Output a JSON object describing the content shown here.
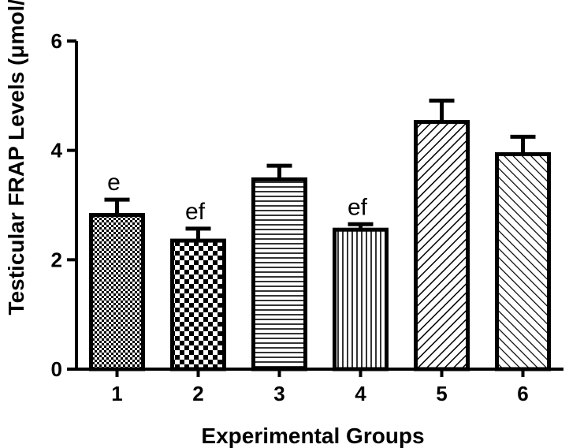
{
  "chart_data": {
    "type": "bar",
    "xlabel": "Experimental Groups",
    "ylabel": "Testicular FRAP Levels (μmol/g)",
    "ylim": [
      0,
      6
    ],
    "yticks": [
      "0",
      "2",
      "4",
      "6"
    ],
    "categories": [
      "1",
      "2",
      "3",
      "4",
      "5",
      "6"
    ],
    "values": [
      2.82,
      2.35,
      3.47,
      2.55,
      4.52,
      3.93
    ],
    "errors": [
      0.28,
      0.22,
      0.25,
      0.1,
      0.39,
      0.32
    ],
    "annotations": [
      "e",
      "ef",
      "",
      "ef",
      "",
      ""
    ],
    "patterns": [
      "fine-checker",
      "coarse-checker",
      "horizontal-lines",
      "vertical-lines",
      "diagonal-up",
      "diagonal-down"
    ],
    "grid": false,
    "legend": "none"
  }
}
